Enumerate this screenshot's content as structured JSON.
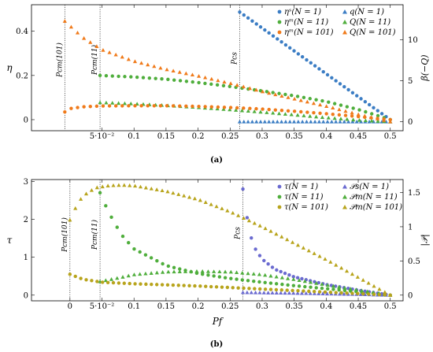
{
  "captions": {
    "a": "(a)",
    "b": "(b)"
  },
  "colors": {
    "blue": "#3b7dc4",
    "orange": "#f07a1a",
    "green": "#4fae3c",
    "olive": "#b8a41c",
    "purple": "#6a6ad0",
    "brown": "#9a6a2a"
  },
  "chart_data": [
    {
      "type": "scatter",
      "xlabel": "",
      "ylabel": "η",
      "y2label": "β(−Q)",
      "xlim": [
        -0.06,
        0.52
      ],
      "ylim": [
        -0.05,
        0.52
      ],
      "y2lim": [
        -1.1,
        14.3
      ],
      "x_ticks": [
        {
          "v": 0.05,
          "label": "5·10⁻²"
        },
        {
          "v": 0.1,
          "label": "0.1"
        },
        {
          "v": 0.15,
          "label": "0.15"
        },
        {
          "v": 0.2,
          "label": "0.2"
        },
        {
          "v": 0.25,
          "label": "0.25"
        },
        {
          "v": 0.3,
          "label": "0.3"
        },
        {
          "v": 0.35,
          "label": "0.35"
        },
        {
          "v": 0.4,
          "label": "0.4"
        },
        {
          "v": 0.45,
          "label": "0.45"
        },
        {
          "v": 0.5,
          "label": "0.5"
        }
      ],
      "y_ticks": [
        {
          "v": 0,
          "label": "0"
        },
        {
          "v": 0.2,
          "label": "0.2"
        },
        {
          "v": 0.4,
          "label": "0.4"
        }
      ],
      "y2_ticks": [
        {
          "v": 0,
          "label": "0"
        },
        {
          "v": 5,
          "label": "5"
        },
        {
          "v": 10,
          "label": "10"
        }
      ],
      "vlines": [
        {
          "x": -0.008,
          "label": "Pcm(101)"
        },
        {
          "x": 0.047,
          "label": "Pcm(11)"
        },
        {
          "x": 0.265,
          "label": "Pcs"
        }
      ],
      "legend": {
        "position": "top-right",
        "entries": [
          {
            "label": "ηˢ(N = 1)",
            "marker": "circle",
            "color": "#3b7dc4"
          },
          {
            "label": "q(N = 1)",
            "marker": "triangle",
            "color": "#3b7dc4"
          },
          {
            "label": "ηᵐ(N = 11)",
            "marker": "circle",
            "color": "#4fae3c"
          },
          {
            "label": "Q(N = 11)",
            "marker": "triangle",
            "color": "#4fae3c"
          },
          {
            "label": "ηᵐ(N = 101)",
            "marker": "circle",
            "color": "#f07a1a"
          },
          {
            "label": "Q(N = 101)",
            "marker": "triangle",
            "color": "#f07a1a"
          }
        ]
      },
      "series": [
        {
          "label_ref": 0,
          "marker": "circle",
          "color": "#3b7dc4",
          "axis": "left",
          "x_start": 0.265,
          "x_end": 0.5,
          "n": 37,
          "points": [
            [
              0.265,
              0.487
            ],
            [
              0.5,
              0.0
            ]
          ],
          "shape": "linear"
        },
        {
          "label_ref": 1,
          "marker": "triangle",
          "color": "#3b7dc4",
          "axis": "right",
          "x_start": 0.265,
          "x_end": 0.5,
          "n": 37,
          "points": [
            [
              0.265,
              0.0
            ],
            [
              0.5,
              0.0
            ]
          ],
          "shape": "linear"
        },
        {
          "label_ref": 2,
          "marker": "circle",
          "color": "#4fae3c",
          "axis": "left",
          "x_start": 0.047,
          "x_end": 0.5,
          "n": 48,
          "points": [
            [
              0.047,
              0.2
            ],
            [
              0.1,
              0.193
            ],
            [
              0.15,
              0.183
            ],
            [
              0.2,
              0.168
            ],
            [
              0.25,
              0.15
            ],
            [
              0.3,
              0.13
            ],
            [
              0.35,
              0.108
            ],
            [
              0.4,
              0.082
            ],
            [
              0.45,
              0.046
            ],
            [
              0.5,
              0.0
            ]
          ],
          "shape": "poly"
        },
        {
          "label_ref": 3,
          "marker": "triangle",
          "color": "#4fae3c",
          "axis": "right",
          "x_start": 0.047,
          "x_end": 0.5,
          "n": 48,
          "points": [
            [
              0.047,
              2.35
            ],
            [
              0.1,
              2.2
            ],
            [
              0.15,
              1.99
            ],
            [
              0.2,
              1.75
            ],
            [
              0.25,
              1.48
            ],
            [
              0.3,
              1.18
            ],
            [
              0.35,
              0.85
            ],
            [
              0.4,
              0.5
            ],
            [
              0.45,
              0.2
            ],
            [
              0.5,
              0.0
            ]
          ],
          "shape": "poly"
        },
        {
          "label_ref": 4,
          "marker": "circle",
          "color": "#f07a1a",
          "axis": "left",
          "x_start": -0.008,
          "x_end": 0.5,
          "n": 52,
          "points": [
            [
              -0.008,
              0.035
            ],
            [
              0.0,
              0.05
            ],
            [
              0.02,
              0.058
            ],
            [
              0.05,
              0.062
            ],
            [
              0.1,
              0.063
            ],
            [
              0.15,
              0.063
            ],
            [
              0.2,
              0.06
            ],
            [
              0.25,
              0.055
            ],
            [
              0.3,
              0.048
            ],
            [
              0.35,
              0.038
            ],
            [
              0.4,
              0.027
            ],
            [
              0.45,
              0.014
            ],
            [
              0.5,
              0.0
            ]
          ],
          "shape": "poly"
        },
        {
          "label_ref": 5,
          "marker": "triangle",
          "color": "#f07a1a",
          "axis": "right",
          "x_start": -0.008,
          "x_end": 0.5,
          "n": 52,
          "points": [
            [
              -0.008,
              12.3
            ],
            [
              0.02,
              10.3
            ],
            [
              0.05,
              8.8
            ],
            [
              0.1,
              7.4
            ],
            [
              0.15,
              6.4
            ],
            [
              0.2,
              5.6
            ],
            [
              0.25,
              4.7
            ],
            [
              0.3,
              3.7
            ],
            [
              0.35,
              2.8
            ],
            [
              0.4,
              1.9
            ],
            [
              0.45,
              0.9
            ],
            [
              0.5,
              0.0
            ]
          ],
          "shape": "poly"
        }
      ]
    },
    {
      "type": "scatter",
      "xlabel": "Pf",
      "ylabel": "τ",
      "y2label": "|𝒫|",
      "xlim": [
        -0.06,
        0.52
      ],
      "ylim": [
        -0.15,
        3.05
      ],
      "y2lim": [
        -0.083,
        1.69
      ],
      "x_ticks": [
        {
          "v": 0,
          "label": "0"
        },
        {
          "v": 0.05,
          "label": "5·10⁻²"
        },
        {
          "v": 0.1,
          "label": "0.1"
        },
        {
          "v": 0.15,
          "label": "0.15"
        },
        {
          "v": 0.2,
          "label": "0.2"
        },
        {
          "v": 0.25,
          "label": "0.25"
        },
        {
          "v": 0.3,
          "label": "0.3"
        },
        {
          "v": 0.35,
          "label": "0.35"
        },
        {
          "v": 0.4,
          "label": "0.4"
        },
        {
          "v": 0.45,
          "label": "0.45"
        },
        {
          "v": 0.5,
          "label": "0.5"
        }
      ],
      "y_ticks": [
        {
          "v": 0,
          "label": "0"
        },
        {
          "v": 1,
          "label": "1"
        },
        {
          "v": 2,
          "label": "2"
        },
        {
          "v": 3,
          "label": "3"
        }
      ],
      "y2_ticks": [
        {
          "v": 0,
          "label": "0"
        },
        {
          "v": 0.5,
          "label": "0.5"
        },
        {
          "v": 1,
          "label": "1"
        },
        {
          "v": 1.5,
          "label": "1.5"
        }
      ],
      "vlines": [
        {
          "x": 0.0,
          "label": "Pcm(101)"
        },
        {
          "x": 0.047,
          "label": "Pcm(11)"
        },
        {
          "x": 0.27,
          "label": "Pcs"
        }
      ],
      "legend": {
        "position": "top-right",
        "entries": [
          {
            "label": "τ(N = 1)",
            "marker": "circle",
            "color": "#6a6ad0"
          },
          {
            "label": "𝒫s(N = 1)",
            "marker": "triangle",
            "color": "#6a6ad0"
          },
          {
            "label": "τ(N = 11)",
            "marker": "circle",
            "color": "#4fae3c"
          },
          {
            "label": "𝒫m(N = 11)",
            "marker": "triangle",
            "color": "#4fae3c"
          },
          {
            "label": "τ(N = 101)",
            "marker": "circle",
            "color": "#b8a41c"
          },
          {
            "label": "𝒫m(N = 101)",
            "marker": "triangle",
            "color": "#b8a41c"
          }
        ]
      },
      "series": [
        {
          "label_ref": 0,
          "marker": "circle",
          "color": "#6a6ad0",
          "axis": "left",
          "x_start": 0.27,
          "x_end": 0.5,
          "n": 36,
          "points": [
            [
              0.27,
              2.8
            ],
            [
              0.28,
              1.65
            ],
            [
              0.29,
              1.2
            ],
            [
              0.3,
              0.95
            ],
            [
              0.32,
              0.68
            ],
            [
              0.35,
              0.48
            ],
            [
              0.4,
              0.28
            ],
            [
              0.45,
              0.13
            ],
            [
              0.5,
              0.0
            ]
          ],
          "shape": "poly"
        },
        {
          "label_ref": 1,
          "marker": "triangle",
          "color": "#6a6ad0",
          "axis": "right",
          "x_start": 0.27,
          "x_end": 0.5,
          "n": 36,
          "points": [
            [
              0.27,
              0.04
            ],
            [
              0.35,
              0.03
            ],
            [
              0.45,
              0.012
            ],
            [
              0.5,
              0.0
            ]
          ],
          "shape": "poly"
        },
        {
          "label_ref": 2,
          "marker": "circle",
          "color": "#4fae3c",
          "axis": "left",
          "x_start": 0.047,
          "x_end": 0.5,
          "n": 52,
          "points": [
            [
              0.047,
              2.7
            ],
            [
              0.06,
              2.2
            ],
            [
              0.08,
              1.6
            ],
            [
              0.1,
              1.22
            ],
            [
              0.15,
              0.78
            ],
            [
              0.2,
              0.57
            ],
            [
              0.25,
              0.44
            ],
            [
              0.3,
              0.34
            ],
            [
              0.35,
              0.25
            ],
            [
              0.4,
              0.17
            ],
            [
              0.45,
              0.09
            ],
            [
              0.5,
              0.0
            ]
          ],
          "shape": "poly"
        },
        {
          "label_ref": 3,
          "marker": "triangle",
          "color": "#4fae3c",
          "axis": "right",
          "x_start": 0.047,
          "x_end": 0.5,
          "n": 52,
          "points": [
            [
              0.047,
              0.2
            ],
            [
              0.08,
              0.26
            ],
            [
              0.1,
              0.3
            ],
            [
              0.15,
              0.34
            ],
            [
              0.2,
              0.35
            ],
            [
              0.25,
              0.34
            ],
            [
              0.3,
              0.3
            ],
            [
              0.35,
              0.23
            ],
            [
              0.4,
              0.15
            ],
            [
              0.45,
              0.075
            ],
            [
              0.5,
              0.0
            ]
          ],
          "shape": "poly"
        },
        {
          "label_ref": 4,
          "marker": "circle",
          "color": "#b8a41c",
          "axis": "left",
          "x_start": 0.0,
          "x_end": 0.5,
          "n": 60,
          "points": [
            [
              0.0,
              0.55
            ],
            [
              0.02,
              0.42
            ],
            [
              0.05,
              0.34
            ],
            [
              0.1,
              0.3
            ],
            [
              0.15,
              0.27
            ],
            [
              0.2,
              0.24
            ],
            [
              0.25,
              0.2
            ],
            [
              0.3,
              0.16
            ],
            [
              0.35,
              0.12
            ],
            [
              0.4,
              0.08
            ],
            [
              0.45,
              0.04
            ],
            [
              0.5,
              0.0
            ]
          ],
          "shape": "poly"
        },
        {
          "label_ref": 5,
          "marker": "triangle",
          "color": "#b8a41c",
          "axis": "right",
          "x_start": 0.0,
          "x_end": 0.5,
          "n": 60,
          "points": [
            [
              0.0,
              1.1
            ],
            [
              0.01,
              1.3
            ],
            [
              0.02,
              1.45
            ],
            [
              0.04,
              1.57
            ],
            [
              0.06,
              1.6
            ],
            [
              0.08,
              1.61
            ],
            [
              0.1,
              1.6
            ],
            [
              0.15,
              1.52
            ],
            [
              0.2,
              1.4
            ],
            [
              0.25,
              1.22
            ],
            [
              0.3,
              1.0
            ],
            [
              0.35,
              0.76
            ],
            [
              0.4,
              0.52
            ],
            [
              0.45,
              0.26
            ],
            [
              0.5,
              0.0
            ]
          ],
          "shape": "poly"
        }
      ]
    }
  ]
}
